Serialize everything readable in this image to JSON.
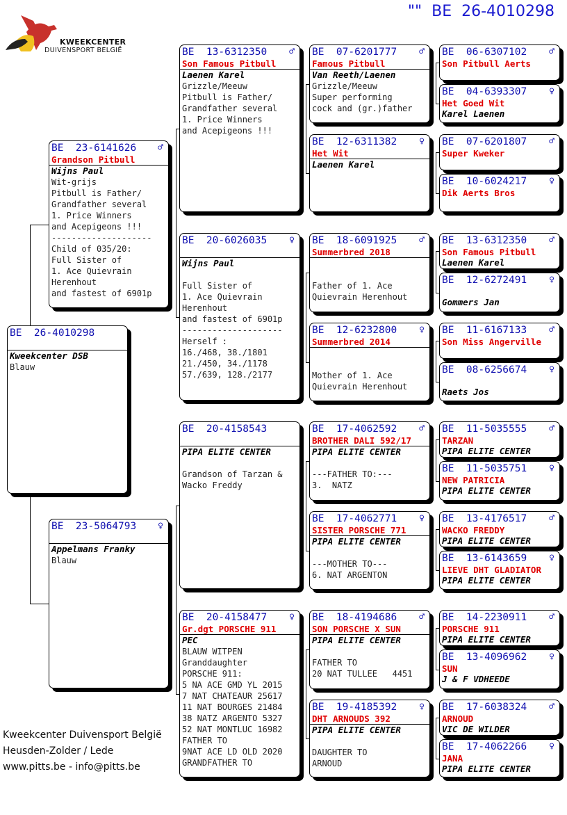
{
  "header": {
    "title": "\"\"  BE  26-4010298"
  },
  "logo": {
    "line1": "KWEEKCENTER",
    "line2": "DUIVENSPORT BELGIË"
  },
  "footer": {
    "line1": "Kweekcenter Duivensport België",
    "line2": "Heusden-Zolder / Lede",
    "line3": "www.pitts.be - info@pitts.be"
  },
  "colors": {
    "ring": "#1010b0",
    "name": "#e00000"
  },
  "pigeons": [
    {
      "ring": "BE  26-4010298",
      "sex": "",
      "name": "",
      "breeder": "Kweekcenter DSB",
      "lines": [
        "Blauw"
      ]
    },
    {
      "ring": "BE  23-6141626",
      "sex": "♂",
      "name": "Grandson Pitbull",
      "breeder": "Wijns Paul",
      "lines": [
        "Wit-grijs",
        "Pitbull is Father/",
        "Grandfather several",
        "1. Price Winners",
        "and Acepigeons !!!",
        "--------------------",
        "Child of 035/20:",
        "Full Sister of",
        "1. Ace Quievrain",
        "Herenhout",
        "and fastest of 6901p"
      ]
    },
    {
      "ring": "BE  23-5064793",
      "sex": "♀",
      "name": "",
      "breeder": "Appelmans Franky",
      "lines": [
        "Blauw"
      ]
    },
    {
      "ring": "BE  13-6312350",
      "sex": "♂",
      "name": "Son Famous Pitbull",
      "breeder": "Laenen Karel",
      "lines": [
        "Grizzle/Meeuw",
        "Pitbull is Father/",
        "Grandfather several",
        "1. Price Winners",
        "and Acepigeons !!!"
      ]
    },
    {
      "ring": "BE  20-6026035",
      "sex": "♀",
      "name": "",
      "breeder": "Wijns Paul",
      "lines": [
        "",
        "Full Sister of",
        "1. Ace Quievrain",
        "Herenhout",
        "and fastest of 6901p",
        "--------------------",
        "Herself :",
        "16./468, 38./1801",
        "21./450, 34./1178",
        "57./639, 128./2177"
      ]
    },
    {
      "ring": "BE  20-4158543",
      "sex": "",
      "name": "",
      "breeder": "PIPA ELITE CENTER",
      "lines": [
        "",
        "Grandson of Tarzan &",
        "Wacko Freddy"
      ]
    },
    {
      "ring": "BE  20-4158477",
      "sex": "♀",
      "name": "Gr.dgt PORSCHE 911",
      "breeder": "PEC",
      "lines": [
        "BLAUW WITPEN",
        "Granddaughter",
        "PORSCHE 911:",
        "5 NA ACE GMD YL 2015",
        "7 NAT CHATEAUR 25617",
        "11 NAT BOURGES 21484",
        "38 NATZ ARGENTO 5327",
        "52 NAT MONTLUC 16982",
        "FATHER TO",
        "9NAT ACE LD OLD 2020",
        "GRANDFATHER TO"
      ]
    },
    {
      "ring": "BE  07-6201777",
      "sex": "♂",
      "name": "Famous Pitbull",
      "breeder": "Van Reeth/Laenen",
      "lines": [
        "Grizzle/Meeuw",
        "Super performing",
        "cock and (gr.)father"
      ]
    },
    {
      "ring": "BE  12-6311382",
      "sex": "♀",
      "name": "Het Wit",
      "breeder": "Laenen Karel",
      "lines": []
    },
    {
      "ring": "BE  18-6091925",
      "sex": "♂",
      "name": "Summerbred 2018",
      "breeder": "",
      "lines": [
        "",
        "Father of 1. Ace",
        "Quievrain Herenhout"
      ]
    },
    {
      "ring": "BE  12-6232800",
      "sex": "♀",
      "name": "Summerbred 2014",
      "breeder": "",
      "lines": [
        "",
        "Mother of 1. Ace",
        "Quievrain Herenhout"
      ]
    },
    {
      "ring": "BE  17-4062592",
      "sex": "♂",
      "name": "BROTHER DALI 592/17",
      "breeder": "PIPA ELITE CENTER",
      "lines": [
        "",
        "---FATHER TO:---",
        "3.  NATZ"
      ]
    },
    {
      "ring": "BE  17-4062771",
      "sex": "♀",
      "name": "SISTER PORSCHE 771",
      "breeder": "PIPA ELITE CENTER",
      "lines": [
        "",
        "---MOTHER TO---",
        "6. NAT ARGENTON"
      ]
    },
    {
      "ring": "BE  18-4194686",
      "sex": "♂",
      "name": "SON PORSCHE X SUN",
      "breeder": "PIPA ELITE CENTER",
      "lines": [
        "",
        "FATHER TO",
        "20 NAT TULLEE   4451"
      ]
    },
    {
      "ring": "BE  19-4185392",
      "sex": "♀",
      "name": "DHT ARNOUDS 392",
      "breeder": "PIPA ELITE CENTER",
      "lines": [
        "",
        "DAUGHTER TO",
        "ARNOUD"
      ]
    },
    {
      "ring": "BE  06-6307102",
      "sex": "♂",
      "name": "Son Pitbull Aerts",
      "breeder": "",
      "lines": []
    },
    {
      "ring": "BE  04-6393307",
      "sex": "♀",
      "name": "Het Goed Wit",
      "breeder": "Karel Laenen",
      "lines": []
    },
    {
      "ring": "BE  07-6201807",
      "sex": "♂",
      "name": "Super Kweker",
      "breeder": "",
      "lines": []
    },
    {
      "ring": "BE  10-6024217",
      "sex": "♀",
      "name": "Dik Aerts Bros",
      "breeder": "",
      "lines": []
    },
    {
      "ring": "BE  13-6312350",
      "sex": "♂",
      "name": "Son Famous Pitbull",
      "breeder": "Laenen Karel",
      "lines": []
    },
    {
      "ring": "BE  12-6272491",
      "sex": "♀",
      "name": "",
      "breeder": "Gommers Jan",
      "lines": []
    },
    {
      "ring": "BE  11-6167133",
      "sex": "♂",
      "name": "Son Miss Angerville",
      "breeder": "",
      "lines": []
    },
    {
      "ring": "BE  08-6256674",
      "sex": "♀",
      "name": "",
      "breeder": "Raets Jos",
      "lines": []
    },
    {
      "ring": "BE  11-5035555",
      "sex": "♂",
      "name": "TARZAN",
      "breeder": "PIPA ELITE CENTER",
      "lines": []
    },
    {
      "ring": "BE  11-5035751",
      "sex": "♀",
      "name": "NEW PATRICIA",
      "breeder": "PIPA ELITE CENTER",
      "lines": []
    },
    {
      "ring": "BE  13-4176517",
      "sex": "♂",
      "name": "WACKO FREDDY",
      "breeder": "PIPA ELITE CENTER",
      "lines": []
    },
    {
      "ring": "BE  13-6143659",
      "sex": "♀",
      "name": "LIEVE DHT GLADIATOR",
      "breeder": "PIPA ELITE CENTER",
      "lines": []
    },
    {
      "ring": "BE  14-2230911",
      "sex": "♂",
      "name": "PORSCHE 911",
      "breeder": "PIPA ELITE CENTER",
      "lines": []
    },
    {
      "ring": "BE  13-4096962",
      "sex": "♀",
      "name": "SUN",
      "breeder": "J & F VDHEEDE",
      "lines": []
    },
    {
      "ring": "BE  17-6038324",
      "sex": "♂",
      "name": "ARNOUD",
      "breeder": "VIC DE WILDER",
      "lines": []
    },
    {
      "ring": "BE  17-4062266",
      "sex": "♀",
      "name": "JANA",
      "breeder": "PIPA ELITE CENTER",
      "lines": []
    }
  ]
}
